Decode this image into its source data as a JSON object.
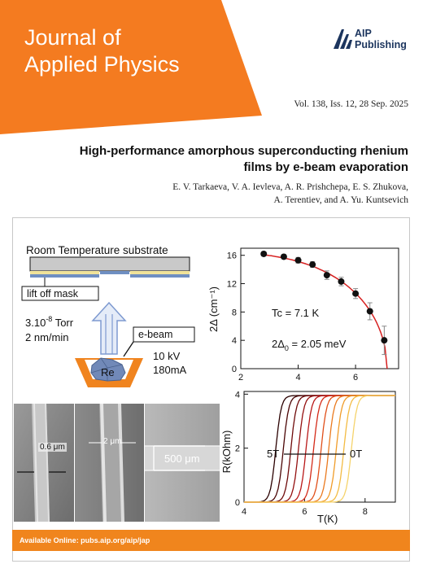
{
  "journal": {
    "title_line1": "Journal of",
    "title_line2": "Applied Physics",
    "publisher_line1": "AIP",
    "publisher_line2": "Publishing",
    "brand_color": "#f47b20",
    "volume": "Vol. 138, Iss. 12, 28 Sep. 2025",
    "available_online": "Available Online: pubs.aip.org/aip/jap"
  },
  "article": {
    "title_line1": "High-performance amorphous superconducting rhenium",
    "title_line2": "films by e-beam evaporation",
    "authors_line1": "E. V. Tarkaeva, V. A. Ievleva, A. R. Prishchepa, E. S. Zhukova,",
    "authors_line2": "A. Terentiev, and A. Yu. Kuntsevich"
  },
  "schematic": {
    "substrate_label": "Room Temperature substrate",
    "mask_label": "lift off mask",
    "pressure_mantissa": "3.10",
    "pressure_exponent": "-8",
    "pressure_unit": " Torr",
    "rate": "2 nm/min",
    "beam_label": "e-beam",
    "voltage": "10 kV",
    "current": "180mA",
    "source_label": "Re"
  },
  "sem": {
    "label1": "0.6 μm",
    "label2": "2 μm",
    "label3": "500 μm"
  },
  "chart_data": [
    {
      "type": "scatter",
      "ylabel": "2Δ (cm⁻¹)",
      "xlabel": "",
      "xlim": [
        2,
        7.5
      ],
      "ylim": [
        0,
        17
      ],
      "xticks": [
        "2",
        "4",
        "6"
      ],
      "yticks": [
        "0",
        "4",
        "8",
        "12",
        "16"
      ],
      "x": [
        2.8,
        3.5,
        4.0,
        4.5,
        5.0,
        5.5,
        6.0,
        6.5,
        7.0
      ],
      "y": [
        16.2,
        15.8,
        15.3,
        14.7,
        13.2,
        12.3,
        10.6,
        8.1,
        4.0
      ],
      "errors": [
        0.3,
        0.3,
        0.4,
        0.4,
        0.6,
        0.6,
        0.7,
        1.2,
        2.0
      ],
      "fit_curve": {
        "color": "#d62020",
        "tc": 7.1,
        "gap0": 16.5
      },
      "annotations": [
        "Tc = 7.1 K",
        "2Δ",
        "0",
        " = 2.05 meV"
      ]
    },
    {
      "type": "line",
      "ylabel": "R(kOhm)",
      "xlabel": "T(K)",
      "xlim": [
        4,
        9
      ],
      "ylim": [
        0,
        4.1
      ],
      "xticks": [
        "4",
        "6",
        "8"
      ],
      "yticks": [
        "0",
        "2",
        "4"
      ],
      "series_count": 11,
      "transition_temps": [
        5.05,
        5.3,
        5.55,
        5.8,
        6.05,
        6.3,
        6.55,
        6.8,
        7.05,
        7.3,
        7.55
      ],
      "rn": 3.95,
      "colors": [
        "#2a0000",
        "#4a0505",
        "#6e0a0a",
        "#941010",
        "#b91818",
        "#d42a18",
        "#e04f1a",
        "#ea7a1f",
        "#f09c29",
        "#f3bb42",
        "#f5d36b"
      ],
      "annotations": [
        "5T",
        "0T"
      ]
    }
  ]
}
